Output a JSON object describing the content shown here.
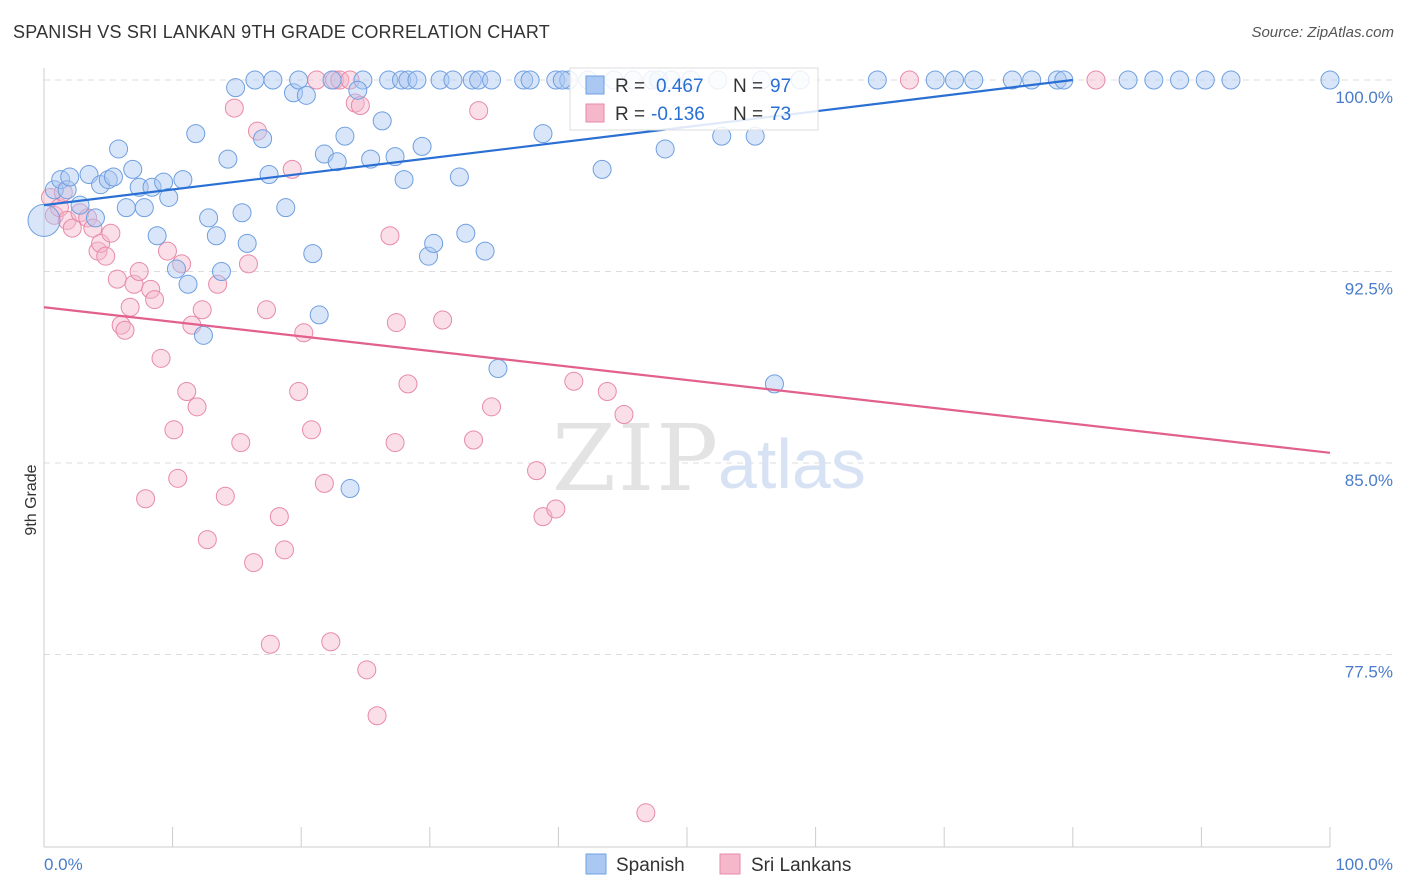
{
  "title": "SPANISH VS SRI LANKAN 9TH GRADE CORRELATION CHART",
  "source": "Source: ZipAtlas.com",
  "watermark": {
    "zip": "ZIP",
    "atlas": "atlas"
  },
  "colors": {
    "spanish_fill": "#aac8f2",
    "spanish_stroke": "#6f9fe0",
    "spanish_line": "#2a6fd3",
    "srilankan_fill": "#f5b8cb",
    "srilankan_stroke": "#e88aa8",
    "srilankan_line": "#e2608c",
    "grid": "#dddddd",
    "tick_text": "#4a7cc9"
  },
  "legend_box": {
    "row1": {
      "r_label": "R =",
      "r_value": "0.467",
      "n_label": "N =",
      "n_value": "97"
    },
    "row2": {
      "r_label": "R =",
      "r_value": "-0.136",
      "n_label": "N =",
      "n_value": "73"
    }
  },
  "chart_data": {
    "type": "scatter",
    "title": "SPANISH VS SRI LANKAN 9TH GRADE CORRELATION CHART",
    "xlabel": "",
    "ylabel": "9th Grade",
    "xlim": [
      0,
      100
    ],
    "ylim": [
      71.3,
      100.5
    ],
    "x_tick_labels": [
      "0.0%",
      "100.0%"
    ],
    "y_ticks": [
      100.0,
      92.5,
      85.0,
      77.5
    ],
    "y_tick_labels": [
      "100.0%",
      "92.5%",
      "85.0%",
      "77.5%"
    ],
    "grid": true,
    "legend_position": "top-center",
    "series": [
      {
        "name": "Spanish",
        "trend": {
          "x": [
            0,
            80
          ],
          "y": [
            95.1,
            100.0
          ]
        },
        "points": [
          [
            0,
            94.5
          ],
          [
            0.8,
            95.7
          ],
          [
            1.3,
            96.1
          ],
          [
            1.8,
            95.7
          ],
          [
            2.8,
            95.1
          ],
          [
            2.0,
            96.2
          ],
          [
            3.5,
            96.3
          ],
          [
            4.0,
            94.6
          ],
          [
            4.4,
            95.9
          ],
          [
            5.0,
            96.1
          ],
          [
            5.4,
            96.2
          ],
          [
            5.8,
            97.3
          ],
          [
            6.4,
            95.0
          ],
          [
            6.9,
            96.5
          ],
          [
            7.4,
            95.8
          ],
          [
            7.8,
            95.0
          ],
          [
            8.4,
            95.8
          ],
          [
            8.8,
            93.9
          ],
          [
            9.3,
            96.0
          ],
          [
            9.7,
            95.4
          ],
          [
            10.3,
            92.6
          ],
          [
            10.8,
            96.1
          ],
          [
            11.2,
            92.0
          ],
          [
            11.8,
            97.9
          ],
          [
            12.4,
            90.0
          ],
          [
            12.8,
            94.6
          ],
          [
            13.4,
            93.9
          ],
          [
            13.8,
            92.5
          ],
          [
            14.3,
            96.9
          ],
          [
            14.9,
            99.7
          ],
          [
            15.4,
            94.8
          ],
          [
            15.8,
            93.6
          ],
          [
            16.4,
            100
          ],
          [
            17.0,
            97.7
          ],
          [
            17.5,
            96.3
          ],
          [
            17.8,
            100
          ],
          [
            18.8,
            95.0
          ],
          [
            19.4,
            99.5
          ],
          [
            19.8,
            100
          ],
          [
            20.4,
            99.4
          ],
          [
            20.9,
            93.2
          ],
          [
            21.4,
            90.8
          ],
          [
            21.8,
            97.1
          ],
          [
            22.4,
            100
          ],
          [
            22.8,
            96.8
          ],
          [
            23.4,
            97.8
          ],
          [
            23.8,
            84.0
          ],
          [
            24.8,
            100
          ],
          [
            24.4,
            99.6
          ],
          [
            25.4,
            96.9
          ],
          [
            26.3,
            98.4
          ],
          [
            26.8,
            100
          ],
          [
            27.3,
            97.0
          ],
          [
            27.8,
            100
          ],
          [
            28.0,
            96.1
          ],
          [
            28.3,
            100
          ],
          [
            29.0,
            100
          ],
          [
            29.4,
            97.4
          ],
          [
            29.9,
            93.1
          ],
          [
            30.3,
            93.6
          ],
          [
            30.8,
            100
          ],
          [
            31.8,
            100
          ],
          [
            32.3,
            96.2
          ],
          [
            32.8,
            94.0
          ],
          [
            33.3,
            100
          ],
          [
            33.8,
            100
          ],
          [
            34.3,
            93.3
          ],
          [
            34.8,
            100
          ],
          [
            35.3,
            88.7
          ],
          [
            37.3,
            100
          ],
          [
            37.8,
            100
          ],
          [
            38.8,
            97.9
          ],
          [
            39.8,
            100
          ],
          [
            40.8,
            100
          ],
          [
            42.3,
            100
          ],
          [
            40.3,
            100
          ],
          [
            43.4,
            96.5
          ],
          [
            44.3,
            100
          ],
          [
            45.8,
            100
          ],
          [
            47.3,
            100
          ],
          [
            47.8,
            100
          ],
          [
            48.8,
            100
          ],
          [
            48.3,
            97.3
          ],
          [
            50.3,
            100
          ],
          [
            52.4,
            100
          ],
          [
            52.7,
            97.8
          ],
          [
            55.3,
            97.8
          ],
          [
            55.8,
            100
          ],
          [
            56.8,
            88.1
          ],
          [
            58.8,
            100
          ],
          [
            64.8,
            100
          ],
          [
            69.3,
            100
          ],
          [
            70.8,
            100
          ],
          [
            72.3,
            100
          ],
          [
            75.3,
            100
          ],
          [
            76.8,
            100
          ],
          [
            78.8,
            100
          ],
          [
            79.3,
            100
          ],
          [
            84.3,
            100
          ],
          [
            86.3,
            100
          ],
          [
            88.3,
            100
          ],
          [
            90.3,
            100
          ],
          [
            100,
            100
          ],
          [
            92.3,
            100
          ]
        ]
      },
      {
        "name": "Sri Lankans",
        "trend": {
          "x": [
            0,
            100
          ],
          "y": [
            91.1,
            85.4
          ]
        },
        "points": [
          [
            0.5,
            95.4
          ],
          [
            0.8,
            94.7
          ],
          [
            1.2,
            95.0
          ],
          [
            1.5,
            95.6
          ],
          [
            1.8,
            94.5
          ],
          [
            2.2,
            94.2
          ],
          [
            2.8,
            94.8
          ],
          [
            3.4,
            94.6
          ],
          [
            3.8,
            94.2
          ],
          [
            4.2,
            93.3
          ],
          [
            4.4,
            93.6
          ],
          [
            4.8,
            93.1
          ],
          [
            5.2,
            94.0
          ],
          [
            5.7,
            92.2
          ],
          [
            6.0,
            90.4
          ],
          [
            6.3,
            90.2
          ],
          [
            6.7,
            91.1
          ],
          [
            7.0,
            92.0
          ],
          [
            7.4,
            92.5
          ],
          [
            7.9,
            83.6
          ],
          [
            8.3,
            91.8
          ],
          [
            8.6,
            91.4
          ],
          [
            9.1,
            89.1
          ],
          [
            9.6,
            93.3
          ],
          [
            10.1,
            86.3
          ],
          [
            10.4,
            84.4
          ],
          [
            10.7,
            92.8
          ],
          [
            11.1,
            87.8
          ],
          [
            11.5,
            90.4
          ],
          [
            11.9,
            87.2
          ],
          [
            12.3,
            91.0
          ],
          [
            12.7,
            82.0
          ],
          [
            13.5,
            92.0
          ],
          [
            14.1,
            83.7
          ],
          [
            14.8,
            98.9
          ],
          [
            15.3,
            85.8
          ],
          [
            15.9,
            92.8
          ],
          [
            16.3,
            81.1
          ],
          [
            16.6,
            98.0
          ],
          [
            17.3,
            91.0
          ],
          [
            17.6,
            77.9
          ],
          [
            18.3,
            82.9
          ],
          [
            18.7,
            81.6
          ],
          [
            19.3,
            96.5
          ],
          [
            19.8,
            87.8
          ],
          [
            20.2,
            90.1
          ],
          [
            21.2,
            100
          ],
          [
            20.8,
            86.3
          ],
          [
            21.8,
            84.2
          ],
          [
            22.3,
            78.0
          ],
          [
            22.6,
            100
          ],
          [
            23.0,
            100
          ],
          [
            23.8,
            100
          ],
          [
            24.2,
            99.1
          ],
          [
            24.6,
            99.0
          ],
          [
            25.1,
            76.9
          ],
          [
            25.9,
            75.1
          ],
          [
            26.9,
            93.9
          ],
          [
            27.4,
            90.5
          ],
          [
            27.3,
            85.8
          ],
          [
            28.3,
            88.1
          ],
          [
            31.0,
            90.6
          ],
          [
            33.4,
            85.9
          ],
          [
            33.8,
            98.8
          ],
          [
            34.8,
            87.2
          ],
          [
            38.3,
            84.7
          ],
          [
            38.8,
            82.9
          ],
          [
            39.8,
            83.2
          ],
          [
            41.2,
            88.2
          ],
          [
            43.8,
            87.8
          ],
          [
            45.1,
            86.9
          ],
          [
            46.8,
            71.3
          ],
          [
            67.3,
            100
          ],
          [
            81.8,
            100
          ]
        ]
      }
    ]
  },
  "bottom_legend": {
    "spanish": "Spanish",
    "srilankan": "Sri Lankans"
  }
}
